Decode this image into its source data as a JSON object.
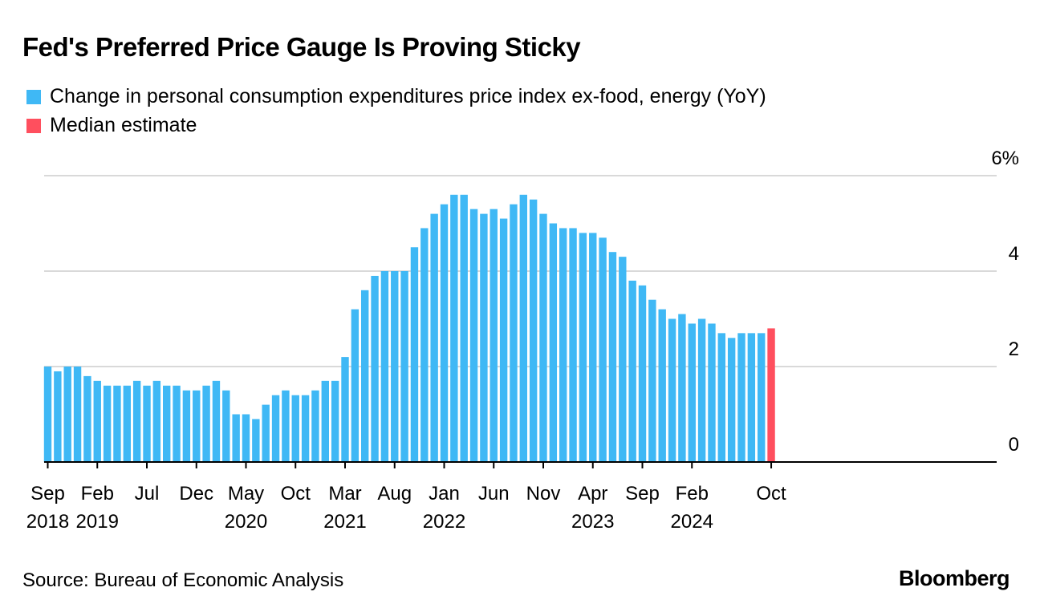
{
  "title": "Fed's Preferred Price Gauge Is Proving Sticky",
  "legend": [
    {
      "label": "Change in personal consumption expenditures price index ex-food, energy (YoY)",
      "color": "#3fb8f5"
    },
    {
      "label": "Median estimate",
      "color": "#ff4f5e"
    }
  ],
  "source": "Source: Bureau of Economic Analysis",
  "brand": "Bloomberg",
  "chart_data": {
    "type": "bar",
    "ylim": [
      0,
      6
    ],
    "yticks": [
      {
        "value": 0,
        "label": "0"
      },
      {
        "value": 2,
        "label": "2"
      },
      {
        "value": 4,
        "label": "4"
      },
      {
        "value": 6,
        "label": "6%"
      }
    ],
    "xticks": [
      {
        "index": 0,
        "month": "Sep",
        "year": "2018"
      },
      {
        "index": 5,
        "month": "Feb",
        "year": "2019"
      },
      {
        "index": 10,
        "month": "Jul",
        "year": ""
      },
      {
        "index": 15,
        "month": "Dec",
        "year": ""
      },
      {
        "index": 20,
        "month": "May",
        "year": "2020"
      },
      {
        "index": 25,
        "month": "Oct",
        "year": ""
      },
      {
        "index": 30,
        "month": "Mar",
        "year": "2021"
      },
      {
        "index": 35,
        "month": "Aug",
        "year": ""
      },
      {
        "index": 40,
        "month": "Jan",
        "year": "2022"
      },
      {
        "index": 45,
        "month": "Jun",
        "year": ""
      },
      {
        "index": 50,
        "month": "Nov",
        "year": ""
      },
      {
        "index": 55,
        "month": "Apr",
        "year": "2023"
      },
      {
        "index": 60,
        "month": "Sep",
        "year": ""
      },
      {
        "index": 65,
        "month": "Feb",
        "year": "2024"
      },
      {
        "index": 73,
        "month": "Oct",
        "year": ""
      }
    ],
    "series": [
      {
        "name": "Change in personal consumption expenditures price index ex-food, energy (YoY)",
        "color": "#3fb8f5",
        "start_index": 0,
        "values": [
          2.0,
          1.9,
          2.0,
          2.0,
          1.8,
          1.7,
          1.6,
          1.6,
          1.6,
          1.7,
          1.6,
          1.7,
          1.6,
          1.6,
          1.5,
          1.5,
          1.6,
          1.7,
          1.5,
          1.0,
          1.0,
          0.9,
          1.2,
          1.4,
          1.5,
          1.4,
          1.4,
          1.5,
          1.7,
          1.7,
          2.2,
          3.2,
          3.6,
          3.9,
          4.0,
          4.0,
          4.0,
          4.5,
          4.9,
          5.2,
          5.4,
          5.6,
          5.6,
          5.3,
          5.2,
          5.3,
          5.1,
          5.4,
          5.6,
          5.5,
          5.2,
          5.0,
          4.9,
          4.9,
          4.8,
          4.8,
          4.7,
          4.4,
          4.3,
          3.8,
          3.7,
          3.4,
          3.2,
          3.0,
          3.1,
          2.9,
          3.0,
          2.9,
          2.7,
          2.6,
          2.7,
          2.7,
          2.7
        ]
      },
      {
        "name": "Median estimate",
        "color": "#ff4f5e",
        "start_index": 73,
        "values": [
          2.8
        ]
      }
    ]
  }
}
